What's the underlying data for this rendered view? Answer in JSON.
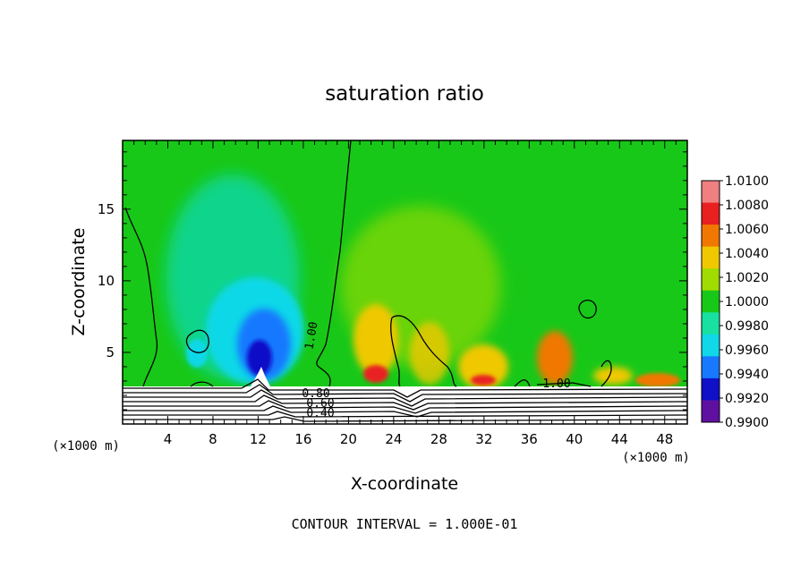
{
  "chart_data": {
    "type": "heatmap",
    "title": "saturation ratio",
    "xlabel": "X-coordinate",
    "ylabel": "Z-coordinate",
    "x_unit": "(×1000 m)",
    "xlim": [
      0,
      50
    ],
    "ylim": [
      0,
      19.8
    ],
    "xticks": [
      "4",
      "8",
      "12",
      "16",
      "20",
      "24",
      "28",
      "32",
      "36",
      "40",
      "44",
      "48"
    ],
    "xtick_values": [
      4,
      8,
      12,
      16,
      20,
      24,
      28,
      32,
      36,
      40,
      44,
      48
    ],
    "yticks": [
      "5",
      "10",
      "15"
    ],
    "ytick_values": [
      5,
      10,
      15
    ],
    "contour_labels": [
      "1.00",
      "1.00",
      "0.80",
      "0.60",
      "0.40"
    ],
    "colorbar": {
      "labels": [
        "1.0100",
        "1.0080",
        "1.0060",
        "1.0040",
        "1.0020",
        "1.0000",
        "0.9980",
        "0.9960",
        "0.9940",
        "0.9920",
        "0.9900"
      ],
      "values": [
        1.01,
        1.008,
        1.006,
        1.004,
        1.002,
        1.0,
        0.998,
        0.996,
        0.994,
        0.992,
        0.99
      ],
      "colors": [
        "#f08080",
        "#e82020",
        "#f07800",
        "#f0c800",
        "#a0dc00",
        "#18c818",
        "#18e0a0",
        "#10d8e8",
        "#1878ff",
        "#1010c8",
        "#6010a0"
      ]
    },
    "features": [
      {
        "kind": "dry-minimum",
        "x": 12.5,
        "z": 4.5,
        "value": 0.992
      },
      {
        "kind": "moist-maximum",
        "x": 22,
        "z": 3.0,
        "value": 1.006
      },
      {
        "kind": "moist-maximum",
        "x": 31,
        "z": 2.8,
        "value": 1.006
      },
      {
        "kind": "moist-maximum",
        "x": 38,
        "z": 3.5,
        "value": 1.004
      }
    ],
    "contour_interval_text": "CONTOUR INTERVAL = 1.000E-01"
  }
}
